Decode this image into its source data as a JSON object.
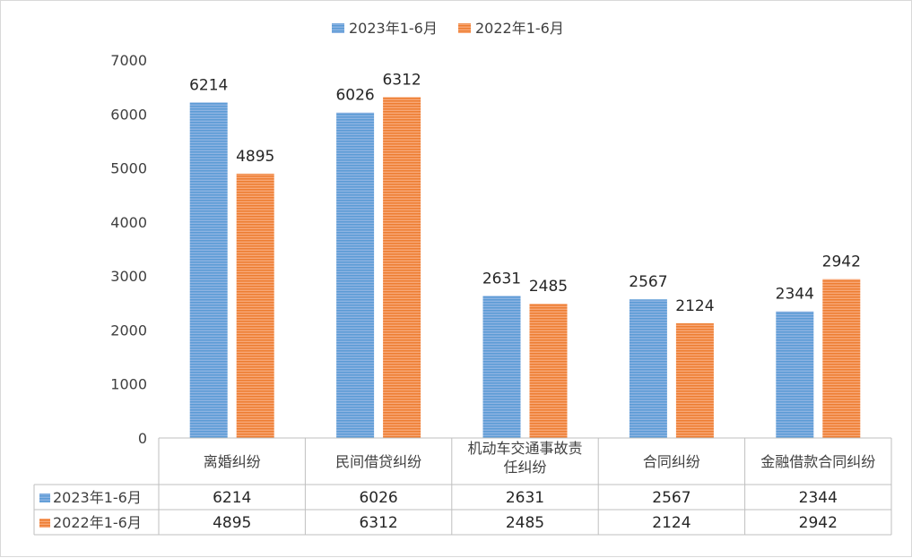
{
  "chart_data": {
    "type": "bar",
    "categories": [
      "离婚纠纷",
      "民间借贷纠纷",
      "机动车交通事故责任纠纷",
      "合同纠纷",
      "金融借款合同纠纷"
    ],
    "category_lines": [
      [
        "离婚纠纷"
      ],
      [
        "民间借贷纠纷"
      ],
      [
        "机动车交通事故责",
        "任纠纷"
      ],
      [
        "合同纠纷"
      ],
      [
        "金融借款合同纠纷"
      ]
    ],
    "series": [
      {
        "name": "2023年1-6月",
        "values": [
          6214,
          6026,
          2631,
          2567,
          2344
        ]
      },
      {
        "name": "2022年1-6月",
        "values": [
          4895,
          6312,
          2485,
          2124,
          2942
        ]
      }
    ],
    "colors": {
      "series0_fill": "#8db3e2",
      "series0_stripe": "#5b9bd5",
      "series1_fill": "#f8a776",
      "series1_stripe": "#ed7d31"
    },
    "ylim": [
      0,
      7000
    ],
    "yticks": [
      0,
      1000,
      2000,
      3000,
      4000,
      5000,
      6000,
      7000
    ],
    "legend_position": "top",
    "gridlines": false,
    "data_labels": true,
    "data_table": true
  }
}
